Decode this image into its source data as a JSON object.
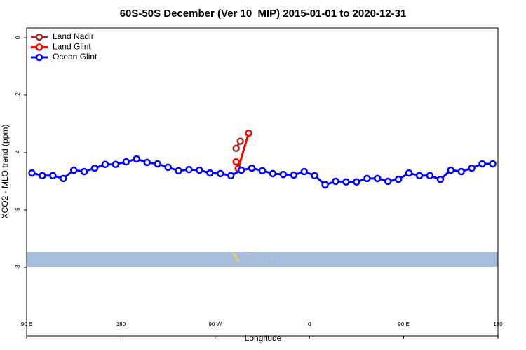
{
  "chart_data": {
    "type": "line",
    "title": "60S-50S December (Ver 10_MIP)   2015-01-01 to 2020-12-31",
    "x_label": "Longitude",
    "y_label": "XCO2 - MLO trend (ppm)",
    "xlim": [
      90,
      540
    ],
    "xticks": [
      {
        "value": 90,
        "label": "90 E"
      },
      {
        "value": 180,
        "label": "180"
      },
      {
        "value": 270,
        "label": "90 W"
      },
      {
        "value": 360,
        "label": "0"
      },
      {
        "value": 450,
        "label": "90 E"
      },
      {
        "value": 540,
        "label": "180"
      }
    ],
    "ylim": [
      -10.39,
      0.34
    ],
    "yticks": [
      0,
      -2,
      -4,
      -6,
      -8
    ],
    "legend": "top-left",
    "series": [
      {
        "name": "Land Nadir",
        "color": "#a52a2a",
        "x": [
          290,
          294
        ],
        "values": [
          -3.85,
          -3.6
        ]
      },
      {
        "name": "Land Glint",
        "color": "#ff0000",
        "x": [
          290,
          292,
          302
        ],
        "values": [
          -4.32,
          -4.55,
          -3.32
        ]
      },
      {
        "name": "Ocean Glint",
        "color": "#0000ff",
        "x": [
          95,
          105,
          115,
          125,
          135,
          145,
          155,
          165,
          175,
          185,
          195,
          205,
          215,
          225,
          235,
          245,
          255,
          265,
          275,
          285,
          295,
          305,
          315,
          325,
          335,
          345,
          355,
          365,
          375,
          385,
          395,
          405,
          415,
          425,
          435,
          445,
          455,
          465,
          475,
          485,
          495,
          505,
          515,
          525,
          535
        ],
        "values": [
          -4.71,
          -4.8,
          -4.8,
          -4.9,
          -4.61,
          -4.66,
          -4.54,
          -4.41,
          -4.41,
          -4.32,
          -4.22,
          -4.34,
          -4.39,
          -4.51,
          -4.63,
          -4.59,
          -4.61,
          -4.71,
          -4.73,
          -4.8,
          -4.61,
          -4.54,
          -4.63,
          -4.73,
          -4.76,
          -4.78,
          -4.66,
          -4.8,
          -5.12,
          -5.0,
          -5.02,
          -5.02,
          -4.9,
          -4.9,
          -5.0,
          -4.93,
          -4.71,
          -4.8,
          -4.8,
          -4.93,
          -4.61,
          -4.66,
          -4.54,
          -4.39,
          -4.39
        ]
      }
    ]
  }
}
